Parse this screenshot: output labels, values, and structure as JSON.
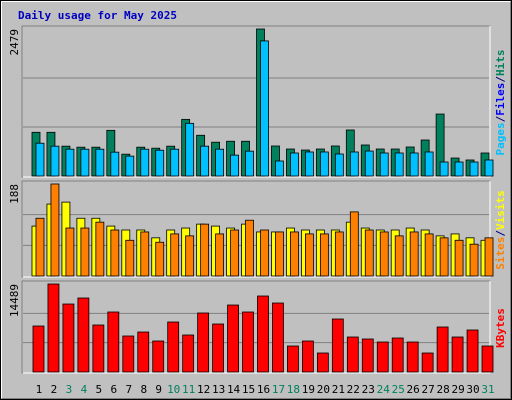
{
  "chart_data": [
    {
      "type": "bar",
      "title": "Daily usage for May 2025",
      "categories": [
        "1",
        "2",
        "3",
        "4",
        "5",
        "6",
        "7",
        "8",
        "9",
        "10",
        "11",
        "12",
        "13",
        "14",
        "15",
        "16",
        "17",
        "18",
        "19",
        "20",
        "21",
        "22",
        "23",
        "24",
        "25",
        "26",
        "27",
        "28",
        "29",
        "30",
        "31"
      ],
      "weekend_color": "#00805c",
      "ylim": [
        0,
        2479
      ],
      "yticks": [
        2479
      ],
      "legend": [
        "Pages",
        "/",
        "Files",
        "/",
        "Hits"
      ],
      "legend_colors": [
        "#00c0ff",
        "#000080",
        "#0000ff",
        "#000080",
        "#00805c"
      ],
      "series": [
        {
          "color": "#00805c",
          "values": [
            737,
            737,
            503,
            486,
            486,
            770,
            368,
            486,
            469,
            503,
            955,
            687,
            570,
            586,
            586,
            2479,
            506,
            455,
            438,
            455,
            506,
            776,
            523,
            455,
            455,
            489,
            607,
            1045,
            303,
            270,
            388
          ]
        },
        {
          "color": "#00c0ff",
          "values": [
            553,
            503,
            452,
            452,
            452,
            402,
            335,
            452,
            435,
            452,
            888,
            503,
            452,
            352,
            419,
            2278,
            253,
            388,
            405,
            405,
            371,
            405,
            421,
            388,
            388,
            388,
            405,
            236,
            236,
            236,
            270
          ]
        }
      ]
    },
    {
      "type": "bar",
      "ylim": [
        0,
        188
      ],
      "yticks": [
        188
      ],
      "legend": [
        "Sites",
        "/",
        "Visits"
      ],
      "legend_colors": [
        "#ff8000",
        "#000080",
        "#ffff00"
      ],
      "series": [
        {
          "color": "#ffff00",
          "values": [
            102,
            147,
            151,
            118,
            118,
            102,
            94,
            94,
            78,
            94,
            98,
            106,
            102,
            98,
            106,
            90,
            90,
            98,
            94,
            94,
            94,
            110,
            98,
            94,
            94,
            98,
            94,
            82,
            86,
            78,
            73
          ]
        },
        {
          "color": "#ff8000",
          "values": [
            118,
            188,
            98,
            98,
            110,
            94,
            73,
            90,
            69,
            86,
            82,
            106,
            86,
            94,
            114,
            94,
            90,
            90,
            86,
            86,
            90,
            131,
            94,
            90,
            82,
            90,
            86,
            78,
            73,
            65,
            78
          ]
        }
      ]
    },
    {
      "type": "bar",
      "ylim": [
        0,
        14489
      ],
      "yticks": [
        14489
      ],
      "legend": [
        "KBytes"
      ],
      "legend_colors": [
        "#ff0000"
      ],
      "series": [
        {
          "color": "#ff0000",
          "values": [
            7573,
            14489,
            11193,
            12181,
            7738,
            9878,
            5926,
            6585,
            5103,
            8232,
            6091,
            9713,
            7903,
            11028,
            9878,
            12510,
            11357,
            4280,
            5103,
            3127,
            8725,
            5762,
            5432,
            4938,
            5597,
            4938,
            3127,
            7409,
            5762,
            6914,
            4280
          ]
        }
      ]
    }
  ]
}
